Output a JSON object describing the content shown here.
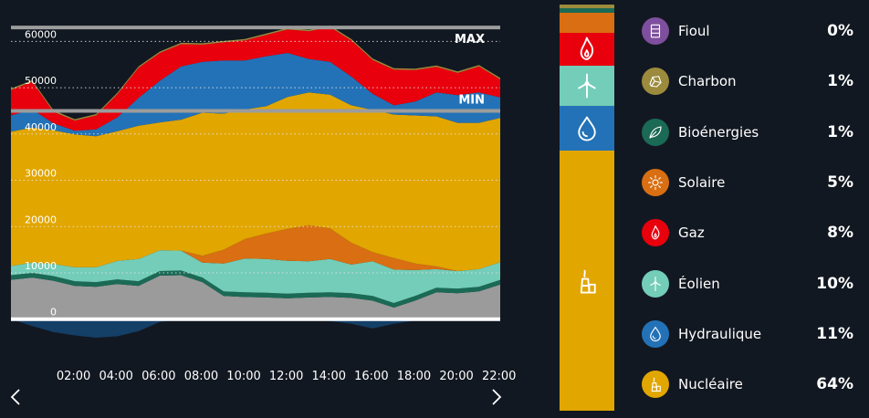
{
  "chart_data": {
    "type": "area",
    "stacked": true,
    "x": [
      "00:00",
      "01:00",
      "02:00",
      "03:00",
      "04:00",
      "05:00",
      "06:00",
      "07:00",
      "08:00",
      "09:00",
      "10:00",
      "11:00",
      "12:00",
      "13:00",
      "14:00",
      "15:00",
      "16:00",
      "17:00",
      "18:00",
      "19:00",
      "20:00",
      "21:00",
      "22:00",
      "23:00"
    ],
    "xticks": [
      "02:00",
      "04:00",
      "06:00",
      "08:00",
      "10:00",
      "12:00",
      "14:00",
      "16:00",
      "18:00",
      "20:00",
      "22:00"
    ],
    "yticks": [
      "0",
      "10000",
      "20000",
      "30000",
      "40000",
      "50000",
      "60000"
    ],
    "ylim": [
      -4000,
      65000
    ],
    "grid": true,
    "max_line": {
      "label": "MAX",
      "value": 63000
    },
    "min_line": {
      "label": "MIN",
      "value": 45000
    },
    "series": [
      {
        "key": "exports",
        "color": "#143f66",
        "values": [
          0,
          -1500,
          -2800,
          -3500,
          -4000,
          -3700,
          -2600,
          -600,
          0,
          0,
          0,
          0,
          0,
          0,
          0,
          -400,
          -1000,
          -2000,
          -1000,
          -300,
          0,
          0,
          0,
          0
        ]
      },
      {
        "key": "base",
        "color": "#9b9b9b",
        "values": [
          8500,
          9000,
          8300,
          7200,
          7000,
          7600,
          7200,
          9400,
          9500,
          8000,
          5000,
          4800,
          4700,
          4500,
          4700,
          4800,
          4600,
          4000,
          2500,
          4000,
          5800,
          5600,
          6000,
          7500
        ]
      },
      {
        "key": "bio",
        "color": "#1a6a55",
        "values": [
          1000,
          1000,
          1000,
          1000,
          1000,
          1000,
          1000,
          1000,
          1000,
          1000,
          1000,
          1000,
          1000,
          1000,
          1000,
          1000,
          1000,
          1000,
          1000,
          1000,
          1000,
          1000,
          1000,
          1000
        ]
      },
      {
        "key": "eolien",
        "color": "#73cdb8",
        "values": [
          2000,
          2200,
          2600,
          3000,
          3200,
          4000,
          4800,
          4500,
          4300,
          3200,
          6000,
          7300,
          7300,
          7100,
          6800,
          7200,
          6200,
          7500,
          7200,
          5600,
          4000,
          3800,
          3800,
          3800
        ]
      },
      {
        "key": "solaire",
        "color": "#d96f12",
        "values": [
          0,
          0,
          0,
          0,
          0,
          0,
          0,
          0,
          0,
          1500,
          3000,
          4200,
          5500,
          6900,
          7800,
          6600,
          4700,
          2000,
          2500,
          1400,
          600,
          0,
          0,
          0
        ]
      },
      {
        "key": "nucleaire",
        "color": "#e2a600",
        "values": [
          29000,
          29200,
          28900,
          28700,
          28300,
          28000,
          28800,
          27600,
          28300,
          30900,
          29400,
          28000,
          27500,
          28500,
          28700,
          28900,
          29700,
          30700,
          31000,
          32000,
          32400,
          32000,
          31600,
          31200
        ]
      },
      {
        "key": "hydraulique",
        "color": "#2372b7",
        "values": [
          3500,
          3900,
          1500,
          800,
          1500,
          3000,
          6000,
          9000,
          11500,
          11000,
          11500,
          10600,
          10800,
          9500,
          7200,
          7100,
          6200,
          3500,
          2000,
          3000,
          5200,
          6000,
          6600,
          4400
        ]
      },
      {
        "key": "gaz",
        "color": "#e8000d",
        "values": [
          5500,
          6000,
          2500,
          2200,
          3000,
          5000,
          6500,
          6000,
          4800,
          3700,
          3900,
          4300,
          4600,
          5100,
          6000,
          7500,
          7800,
          7300,
          7700,
          6800,
          5500,
          4800,
          5600,
          3900
        ]
      },
      {
        "key": "charbon",
        "color": "#9c8a3d",
        "values": [
          300,
          300,
          300,
          300,
          300,
          300,
          300,
          300,
          300,
          300,
          300,
          300,
          300,
          300,
          300,
          300,
          300,
          300,
          300,
          300,
          300,
          300,
          300,
          300
        ]
      }
    ]
  },
  "mix": [
    {
      "key": "nucleaire",
      "label": "Nucléaire",
      "pct": "64%",
      "color": "#e2a600",
      "icon": "nuclear-plant-icon"
    },
    {
      "key": "hydraulique",
      "label": "Hydraulique",
      "pct": "11%",
      "color": "#2372b7",
      "icon": "water-drop-icon"
    },
    {
      "key": "eolien",
      "label": "Éolien",
      "pct": "10%",
      "color": "#73cdb8",
      "icon": "wind-turbine-icon"
    },
    {
      "key": "gaz",
      "label": "Gaz",
      "pct": "8%",
      "color": "#e8000d",
      "icon": "flame-icon"
    },
    {
      "key": "solaire",
      "label": "Solaire",
      "pct": "5%",
      "color": "#d96f12",
      "icon": "sun-icon"
    },
    {
      "key": "bio",
      "label": "Bioénergies",
      "pct": "1%",
      "color": "#1a6a55",
      "icon": "leaf-icon"
    },
    {
      "key": "charbon",
      "label": "Charbon",
      "pct": "1%",
      "color": "#9c8a3d",
      "icon": "coal-icon"
    },
    {
      "key": "fioul",
      "label": "Fioul",
      "pct": "0%",
      "color": "#7e4f9e",
      "icon": "oil-barrel-icon"
    }
  ],
  "legend_order": [
    "fioul",
    "charbon",
    "bio",
    "solaire",
    "gaz",
    "eolien",
    "hydraulique",
    "nucleaire"
  ],
  "colors": {
    "background": "#121821",
    "grid": "#e5e5e5",
    "ref_line": "#9c9c9c",
    "baseline": "#ffffff"
  }
}
